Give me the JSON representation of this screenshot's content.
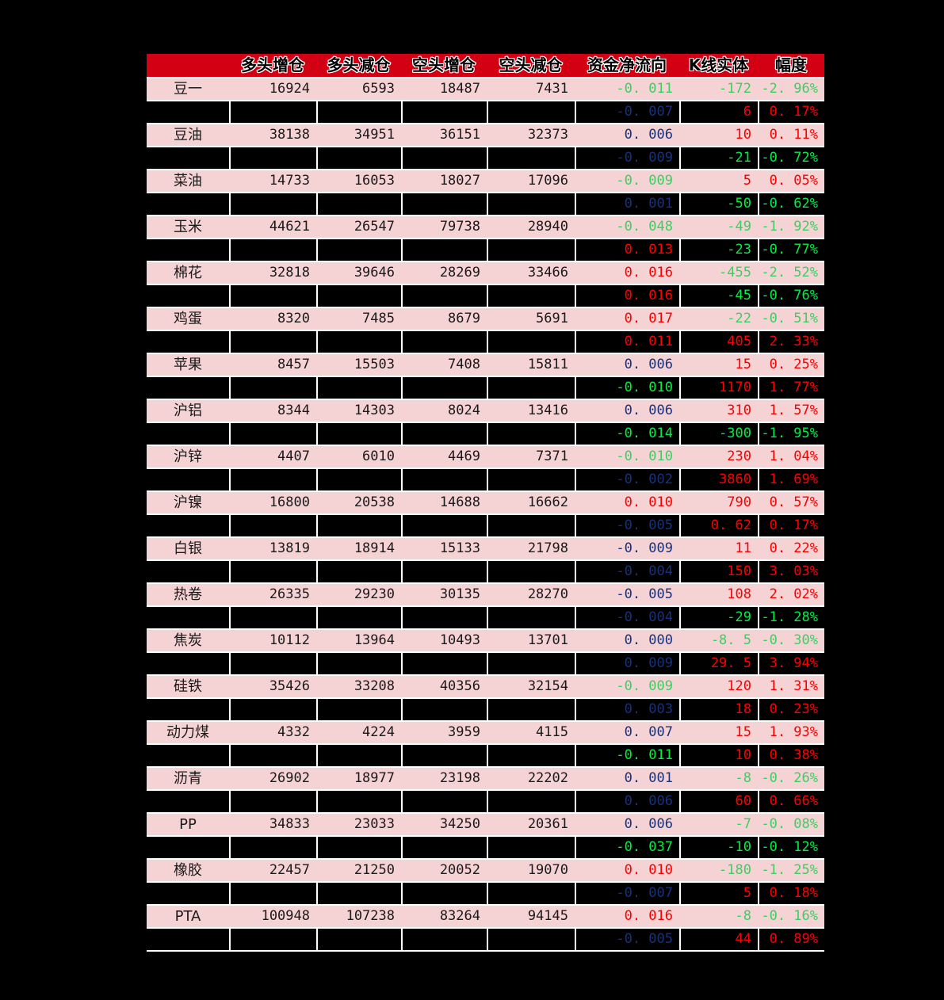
{
  "colors": {
    "page_bg": "#000000",
    "header_bg": "#d20012",
    "header_text": "#000000",
    "row_pink": "#f5d2d4",
    "grid": "#ffffff",
    "text_dark": "#1a1a1a",
    "red": "#fc0000",
    "green_main": "#3bcf63",
    "green_sub": "#00ee44",
    "navy": "#18327a"
  },
  "chart_data": {
    "type": "table",
    "columns": [
      "",
      "多头增仓",
      "多头减仓",
      "空头增仓",
      "空头减仓",
      "资金净流向",
      "K线实体",
      "幅度"
    ],
    "rows": [
      {
        "kind": "main",
        "name": "豆一",
        "long_add": "16924",
        "long_reduce": "6593",
        "short_add": "18487",
        "short_reduce": "7431",
        "net_flow": "-0.011",
        "net_flow_color": "green",
        "k_body": "-172",
        "k_body_color": "green",
        "range": "-2.96%",
        "range_color": "green"
      },
      {
        "kind": "sub",
        "name": "",
        "long_add": "",
        "long_reduce": "",
        "short_add": "",
        "short_reduce": "",
        "net_flow": "-0.007",
        "net_flow_color": "navy",
        "k_body": "6",
        "k_body_color": "red",
        "range": "0.17%",
        "range_color": "red"
      },
      {
        "kind": "main",
        "name": "豆油",
        "long_add": "38138",
        "long_reduce": "34951",
        "short_add": "36151",
        "short_reduce": "32373",
        "net_flow": "0.006",
        "net_flow_color": "navy",
        "k_body": "10",
        "k_body_color": "red",
        "range": "0.11%",
        "range_color": "red"
      },
      {
        "kind": "sub",
        "name": "",
        "long_add": "",
        "long_reduce": "",
        "short_add": "",
        "short_reduce": "",
        "net_flow": "-0.009",
        "net_flow_color": "navy",
        "k_body": "-21",
        "k_body_color": "green",
        "range": "-0.72%",
        "range_color": "green"
      },
      {
        "kind": "main",
        "name": "菜油",
        "long_add": "14733",
        "long_reduce": "16053",
        "short_add": "18027",
        "short_reduce": "17096",
        "net_flow": "-0.009",
        "net_flow_color": "green",
        "k_body": "5",
        "k_body_color": "red",
        "range": "0.05%",
        "range_color": "red"
      },
      {
        "kind": "sub",
        "name": "",
        "long_add": "",
        "long_reduce": "",
        "short_add": "",
        "short_reduce": "",
        "net_flow": "0.001",
        "net_flow_color": "navy",
        "k_body": "-50",
        "k_body_color": "green",
        "range": "-0.62%",
        "range_color": "green"
      },
      {
        "kind": "main",
        "name": "玉米",
        "long_add": "44621",
        "long_reduce": "26547",
        "short_add": "79738",
        "short_reduce": "28940",
        "net_flow": "-0.048",
        "net_flow_color": "green",
        "k_body": "-49",
        "k_body_color": "green",
        "range": "-1.92%",
        "range_color": "green"
      },
      {
        "kind": "sub",
        "name": "",
        "long_add": "",
        "long_reduce": "",
        "short_add": "",
        "short_reduce": "",
        "net_flow": "0.013",
        "net_flow_color": "red",
        "k_body": "-23",
        "k_body_color": "green",
        "range": "-0.77%",
        "range_color": "green"
      },
      {
        "kind": "main",
        "name": "棉花",
        "long_add": "32818",
        "long_reduce": "39646",
        "short_add": "28269",
        "short_reduce": "33466",
        "net_flow": "0.016",
        "net_flow_color": "red",
        "k_body": "-455",
        "k_body_color": "green",
        "range": "-2.52%",
        "range_color": "green"
      },
      {
        "kind": "sub",
        "name": "",
        "long_add": "",
        "long_reduce": "",
        "short_add": "",
        "short_reduce": "",
        "net_flow": "0.016",
        "net_flow_color": "red",
        "k_body": "-45",
        "k_body_color": "green",
        "range": "-0.76%",
        "range_color": "green"
      },
      {
        "kind": "main",
        "name": "鸡蛋",
        "long_add": "8320",
        "long_reduce": "7485",
        "short_add": "8679",
        "short_reduce": "5691",
        "net_flow": "0.017",
        "net_flow_color": "red",
        "k_body": "-22",
        "k_body_color": "green",
        "range": "-0.51%",
        "range_color": "green"
      },
      {
        "kind": "sub",
        "name": "",
        "long_add": "",
        "long_reduce": "",
        "short_add": "",
        "short_reduce": "",
        "net_flow": "0.011",
        "net_flow_color": "red",
        "k_body": "405",
        "k_body_color": "red",
        "range": "2.33%",
        "range_color": "red"
      },
      {
        "kind": "main",
        "name": "苹果",
        "long_add": "8457",
        "long_reduce": "15503",
        "short_add": "7408",
        "short_reduce": "15811",
        "net_flow": "0.006",
        "net_flow_color": "navy",
        "k_body": "15",
        "k_body_color": "red",
        "range": "0.25%",
        "range_color": "red"
      },
      {
        "kind": "sub",
        "name": "",
        "long_add": "",
        "long_reduce": "",
        "short_add": "",
        "short_reduce": "",
        "net_flow": "-0.010",
        "net_flow_color": "green",
        "k_body": "1170",
        "k_body_color": "red",
        "range": "1.77%",
        "range_color": "red"
      },
      {
        "kind": "main",
        "name": "沪铝",
        "long_add": "8344",
        "long_reduce": "14303",
        "short_add": "8024",
        "short_reduce": "13416",
        "net_flow": "0.006",
        "net_flow_color": "navy",
        "k_body": "310",
        "k_body_color": "red",
        "range": "1.57%",
        "range_color": "red"
      },
      {
        "kind": "sub",
        "name": "",
        "long_add": "",
        "long_reduce": "",
        "short_add": "",
        "short_reduce": "",
        "net_flow": "-0.014",
        "net_flow_color": "green",
        "k_body": "-300",
        "k_body_color": "green",
        "range": "-1.95%",
        "range_color": "green"
      },
      {
        "kind": "main",
        "name": "沪锌",
        "long_add": "4407",
        "long_reduce": "6010",
        "short_add": "4469",
        "short_reduce": "7371",
        "net_flow": "-0.010",
        "net_flow_color": "green",
        "k_body": "230",
        "k_body_color": "red",
        "range": "1.04%",
        "range_color": "red"
      },
      {
        "kind": "sub",
        "name": "",
        "long_add": "",
        "long_reduce": "",
        "short_add": "",
        "short_reduce": "",
        "net_flow": "-0.002",
        "net_flow_color": "navy",
        "k_body": "3860",
        "k_body_color": "red",
        "range": "1.69%",
        "range_color": "red"
      },
      {
        "kind": "main",
        "name": "沪镍",
        "long_add": "16800",
        "long_reduce": "20538",
        "short_add": "14688",
        "short_reduce": "16662",
        "net_flow": "0.010",
        "net_flow_color": "red",
        "k_body": "790",
        "k_body_color": "red",
        "range": "0.57%",
        "range_color": "red"
      },
      {
        "kind": "sub",
        "name": "",
        "long_add": "",
        "long_reduce": "",
        "short_add": "",
        "short_reduce": "",
        "net_flow": "-0.005",
        "net_flow_color": "navy",
        "k_body": "0.62",
        "k_body_color": "red",
        "range": "0.17%",
        "range_color": "red"
      },
      {
        "kind": "main",
        "name": "白银",
        "long_add": "13819",
        "long_reduce": "18914",
        "short_add": "15133",
        "short_reduce": "21798",
        "net_flow": "-0.009",
        "net_flow_color": "navy",
        "k_body": "11",
        "k_body_color": "red",
        "range": "0.22%",
        "range_color": "red"
      },
      {
        "kind": "sub",
        "name": "",
        "long_add": "",
        "long_reduce": "",
        "short_add": "",
        "short_reduce": "",
        "net_flow": "-0.004",
        "net_flow_color": "navy",
        "k_body": "150",
        "k_body_color": "red",
        "range": "3.03%",
        "range_color": "red"
      },
      {
        "kind": "main",
        "name": "热卷",
        "long_add": "26335",
        "long_reduce": "29230",
        "short_add": "30135",
        "short_reduce": "28270",
        "net_flow": "-0.005",
        "net_flow_color": "navy",
        "k_body": "108",
        "k_body_color": "red",
        "range": "2.02%",
        "range_color": "red"
      },
      {
        "kind": "sub",
        "name": "",
        "long_add": "",
        "long_reduce": "",
        "short_add": "",
        "short_reduce": "",
        "net_flow": "-0.004",
        "net_flow_color": "navy",
        "k_body": "-29",
        "k_body_color": "green",
        "range": "-1.28%",
        "range_color": "green"
      },
      {
        "kind": "main",
        "name": "焦炭",
        "long_add": "10112",
        "long_reduce": "13964",
        "short_add": "10493",
        "short_reduce": "13701",
        "net_flow": "0.000",
        "net_flow_color": "navy",
        "k_body": "-8.5",
        "k_body_color": "green",
        "range": "-0.30%",
        "range_color": "green"
      },
      {
        "kind": "sub",
        "name": "",
        "long_add": "",
        "long_reduce": "",
        "short_add": "",
        "short_reduce": "",
        "net_flow": "0.009",
        "net_flow_color": "navy",
        "k_body": "29.5",
        "k_body_color": "red",
        "range": "3.94%",
        "range_color": "red"
      },
      {
        "kind": "main",
        "name": "硅铁",
        "long_add": "35426",
        "long_reduce": "33208",
        "short_add": "40356",
        "short_reduce": "32154",
        "net_flow": "-0.009",
        "net_flow_color": "green",
        "k_body": "120",
        "k_body_color": "red",
        "range": "1.31%",
        "range_color": "red"
      },
      {
        "kind": "sub",
        "name": "",
        "long_add": "",
        "long_reduce": "",
        "short_add": "",
        "short_reduce": "",
        "net_flow": "0.003",
        "net_flow_color": "navy",
        "k_body": "18",
        "k_body_color": "red",
        "range": "0.23%",
        "range_color": "red"
      },
      {
        "kind": "main",
        "name": "动力煤",
        "long_add": "4332",
        "long_reduce": "4224",
        "short_add": "3959",
        "short_reduce": "4115",
        "net_flow": "0.007",
        "net_flow_color": "navy",
        "k_body": "15",
        "k_body_color": "red",
        "range": "1.93%",
        "range_color": "red"
      },
      {
        "kind": "sub",
        "name": "",
        "long_add": "",
        "long_reduce": "",
        "short_add": "",
        "short_reduce": "",
        "net_flow": "-0.011",
        "net_flow_color": "green",
        "k_body": "10",
        "k_body_color": "red",
        "range": "0.38%",
        "range_color": "red"
      },
      {
        "kind": "main",
        "name": "沥青",
        "long_add": "26902",
        "long_reduce": "18977",
        "short_add": "23198",
        "short_reduce": "22202",
        "net_flow": "0.001",
        "net_flow_color": "navy",
        "k_body": "-8",
        "k_body_color": "green",
        "range": "-0.26%",
        "range_color": "green"
      },
      {
        "kind": "sub",
        "name": "",
        "long_add": "",
        "long_reduce": "",
        "short_add": "",
        "short_reduce": "",
        "net_flow": "0.006",
        "net_flow_color": "navy",
        "k_body": "60",
        "k_body_color": "red",
        "range": "0.66%",
        "range_color": "red"
      },
      {
        "kind": "main",
        "name": "PP",
        "long_add": "34833",
        "long_reduce": "23033",
        "short_add": "34250",
        "short_reduce": "20361",
        "net_flow": "0.006",
        "net_flow_color": "navy",
        "k_body": "-7",
        "k_body_color": "green",
        "range": "-0.08%",
        "range_color": "green"
      },
      {
        "kind": "sub",
        "name": "",
        "long_add": "",
        "long_reduce": "",
        "short_add": "",
        "short_reduce": "",
        "net_flow": "-0.037",
        "net_flow_color": "green",
        "k_body": "-10",
        "k_body_color": "green",
        "range": "-0.12%",
        "range_color": "green"
      },
      {
        "kind": "main",
        "name": "橡胶",
        "long_add": "22457",
        "long_reduce": "21250",
        "short_add": "20052",
        "short_reduce": "19070",
        "net_flow": "0.010",
        "net_flow_color": "red",
        "k_body": "-180",
        "k_body_color": "green",
        "range": "-1.25%",
        "range_color": "green"
      },
      {
        "kind": "sub",
        "name": "",
        "long_add": "",
        "long_reduce": "",
        "short_add": "",
        "short_reduce": "",
        "net_flow": "-0.007",
        "net_flow_color": "navy",
        "k_body": "5",
        "k_body_color": "red",
        "range": "0.18%",
        "range_color": "red"
      },
      {
        "kind": "main",
        "name": "PTA",
        "long_add": "100948",
        "long_reduce": "107238",
        "short_add": "83264",
        "short_reduce": "94145",
        "net_flow": "0.016",
        "net_flow_color": "red",
        "k_body": "-8",
        "k_body_color": "green",
        "range": "-0.16%",
        "range_color": "green"
      },
      {
        "kind": "sub",
        "name": "",
        "long_add": "",
        "long_reduce": "",
        "short_add": "",
        "short_reduce": "",
        "net_flow": "-0.005",
        "net_flow_color": "navy",
        "k_body": "44",
        "k_body_color": "red",
        "range": "0.89%",
        "range_color": "red"
      }
    ]
  }
}
